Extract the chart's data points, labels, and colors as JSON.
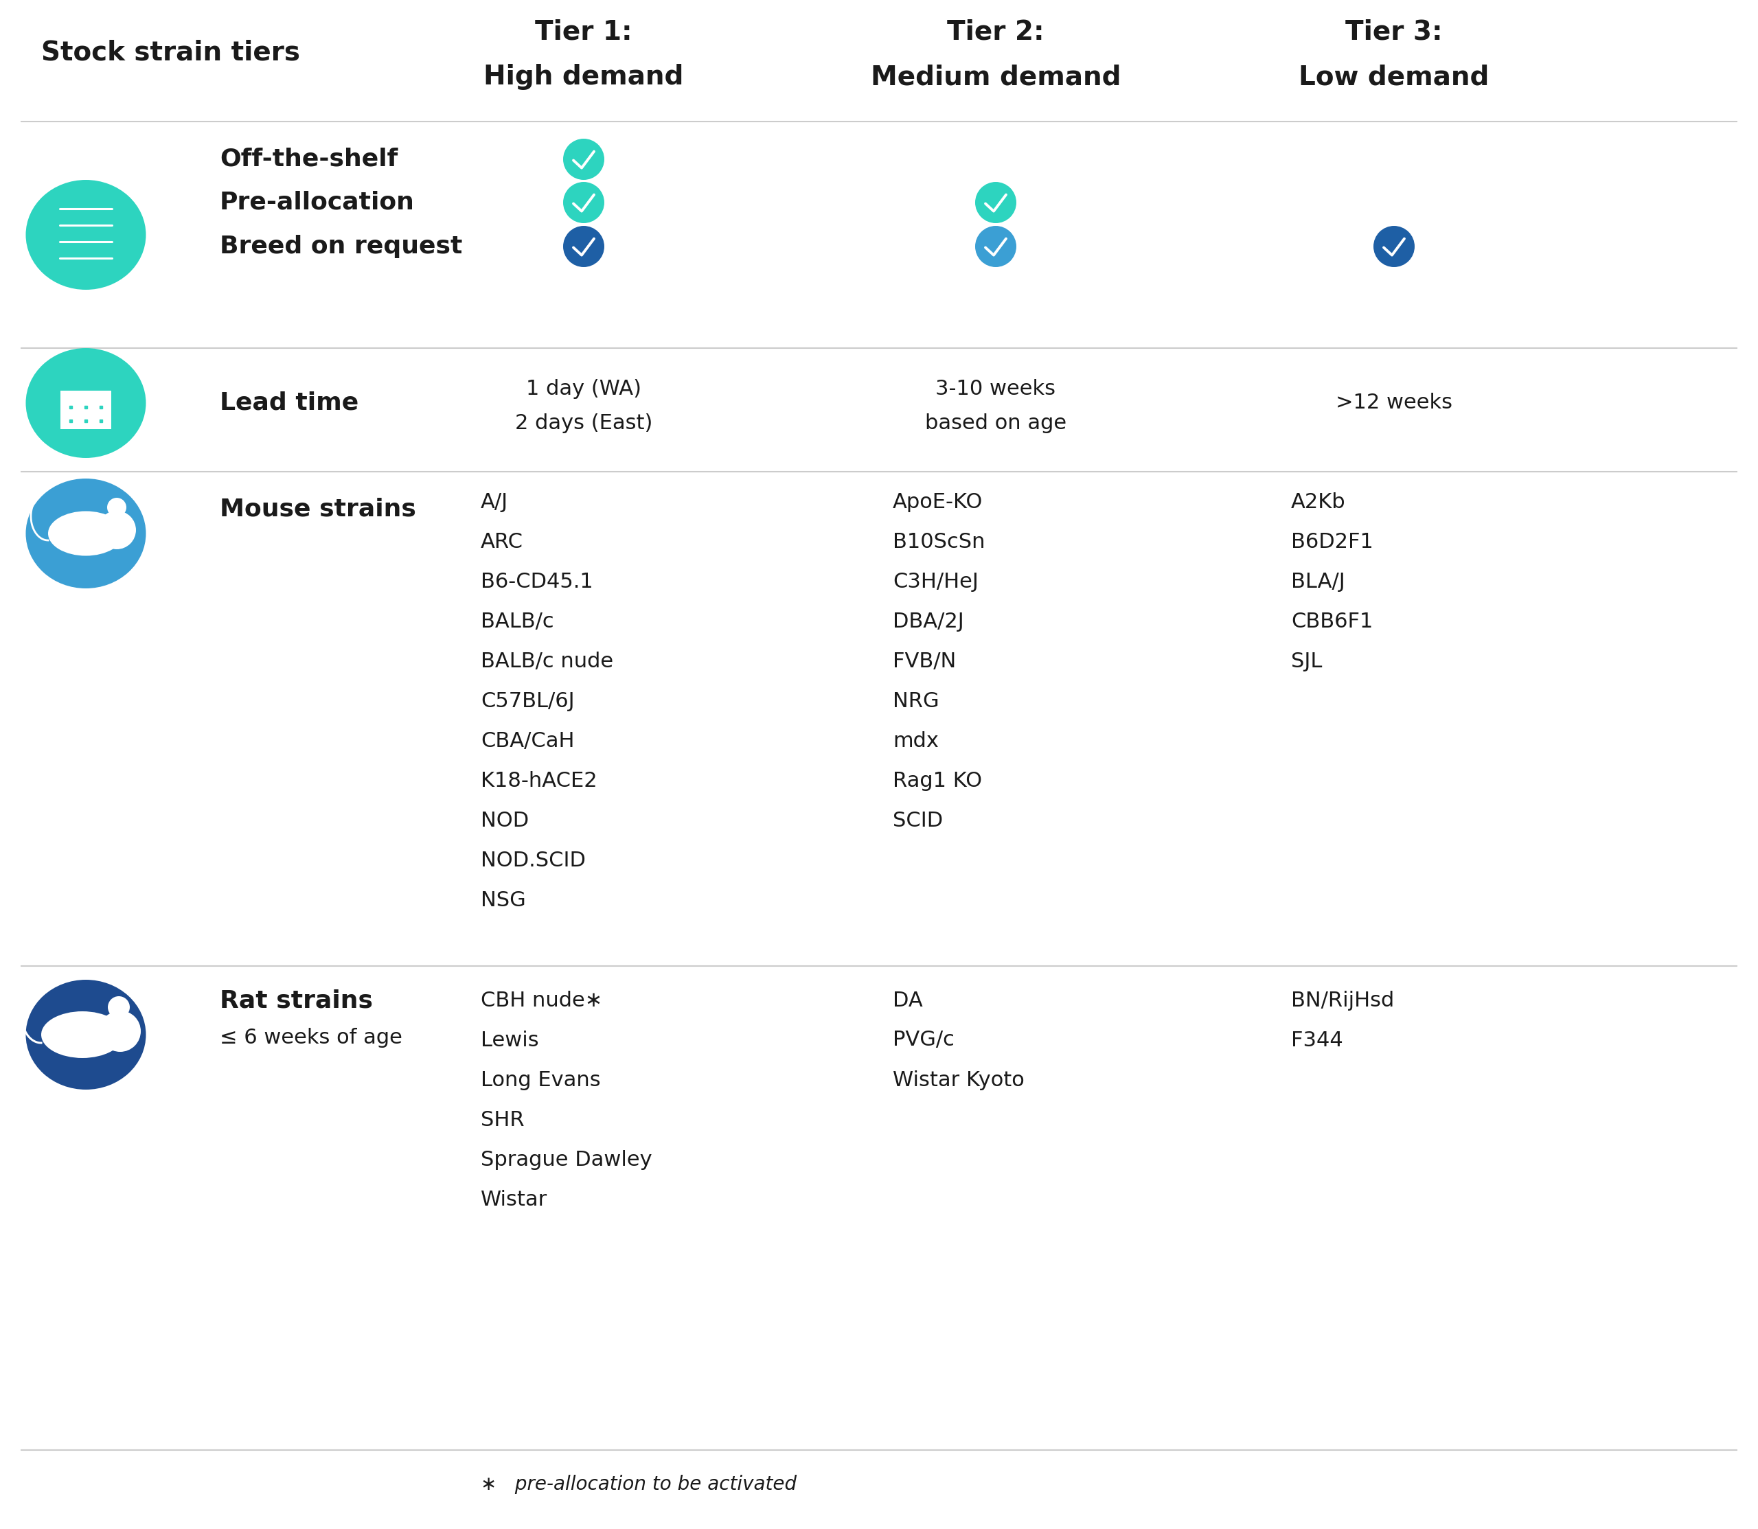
{
  "bg_color": "#ffffff",
  "header_row_label": "Stock strain tiers",
  "col_headers": [
    {
      "line1": "Tier 1:",
      "line2": "High demand"
    },
    {
      "line1": "Tier 2:",
      "line2": "Medium demand"
    },
    {
      "line1": "Tier 3:",
      "line2": "Low demand"
    }
  ],
  "rows": [
    {
      "type": "service",
      "icon_color": "#2dd4bf",
      "items": [
        {
          "label": "Off-the-shelf"
        },
        {
          "label": "Pre-allocation"
        },
        {
          "label": "Breed on request"
        }
      ]
    },
    {
      "type": "lead_time",
      "icon_color": "#2dd4bf",
      "label": "Lead time",
      "tier1_line1": "1 day (WA)",
      "tier1_line2": "2 days (East)",
      "tier2_line1": "3-10 weeks",
      "tier2_line2": "based on age",
      "tier3_line1": ">12 weeks"
    },
    {
      "type": "mouse_strains",
      "icon_color": "#3b9fd4",
      "label": "Mouse strains",
      "tier1_strains": [
        "A/J",
        "ARC",
        "B6-CD45.1",
        "BALB/c",
        "BALB/c nude",
        "C57BL/6J",
        "CBA/CaH",
        "K18-hACE2",
        "NOD",
        "NOD.SCID",
        "NSG"
      ],
      "tier2_strains": [
        "ApoE-KO",
        "B10ScSn",
        "C3H/HeJ",
        "DBA/2J",
        "FVB/N",
        "NRG",
        "mdx",
        "Rag1 KO",
        "SCID"
      ],
      "tier3_strains": [
        "A2Kb",
        "B6D2F1",
        "BLA/J",
        "CBB6F1",
        "SJL"
      ]
    },
    {
      "type": "rat_strains",
      "icon_color": "#1e4b8f",
      "label": "Rat strains",
      "sublabel": "≤ 6 weeks of age",
      "tier1_strains": [
        "CBH nude∗",
        "Lewis",
        "Long Evans",
        "SHR",
        "Sprague Dawley",
        "Wistar"
      ],
      "tier2_strains": [
        "DA",
        "PVG/c",
        "Wistar Kyoto"
      ],
      "tier3_strains": [
        "BN/RijHsd",
        "F344"
      ]
    }
  ],
  "check_configs": [
    [
      true,
      false,
      false
    ],
    [
      true,
      true,
      false
    ],
    [
      true,
      true,
      true
    ]
  ],
  "check_col_colors": [
    [
      "#2dd4bf",
      null,
      null
    ],
    [
      "#2dd4bf",
      "#2dd4bf",
      null
    ],
    [
      "#1e5fa5",
      "#3b9fd4",
      "#1e5fa5"
    ]
  ],
  "footnote": "∗   pre-allocation to be activated",
  "separator_color": "#cccccc",
  "text_color": "#1a1a1a",
  "header_fontsize": 28,
  "label_fontsize": 26,
  "data_fontsize": 22
}
